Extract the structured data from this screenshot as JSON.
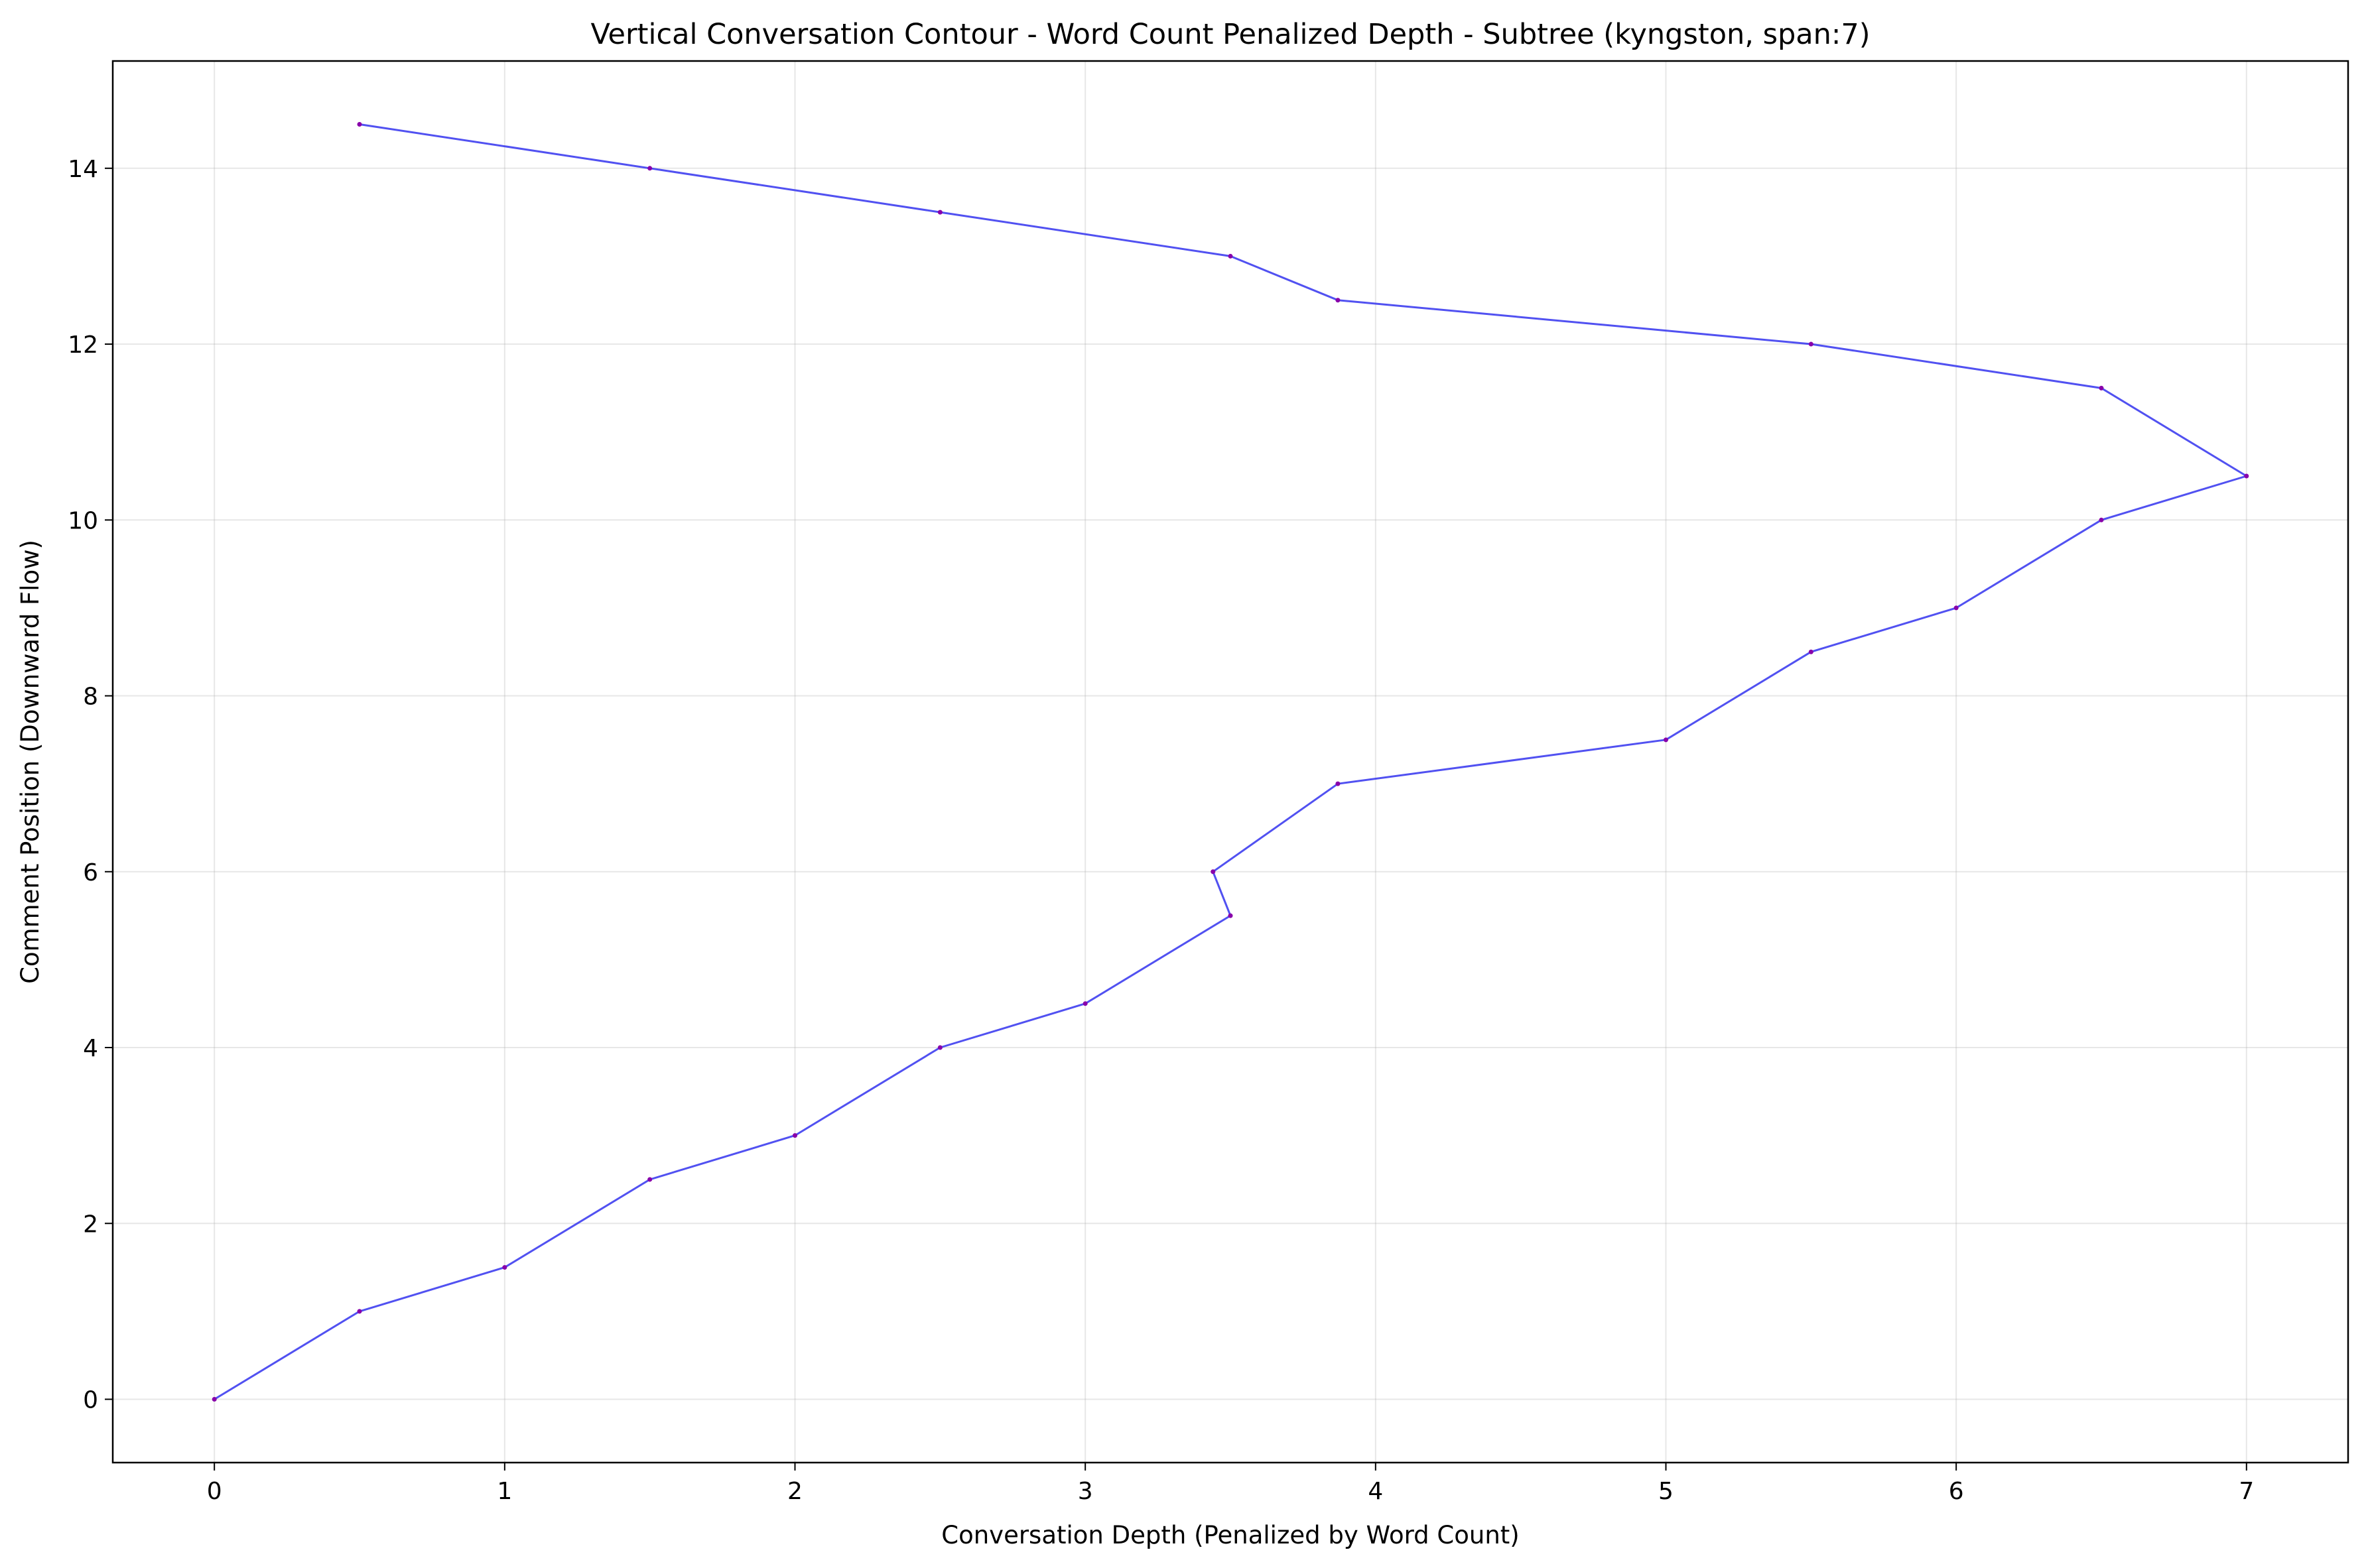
{
  "chart_data": {
    "type": "line",
    "title": "Vertical Conversation Contour - Word Count Penalized Depth - Subtree (kyngston, span:7)",
    "xlabel": "Conversation Depth (Penalized by Word Count)",
    "ylabel": "Comment Position (Downward Flow)",
    "xlim": [
      -0.35,
      7.35
    ],
    "ylim": [
      -0.72,
      15.22
    ],
    "xticks": [
      0,
      1,
      2,
      3,
      4,
      5,
      6,
      7
    ],
    "yticks": [
      0,
      2,
      4,
      6,
      8,
      10,
      12,
      14
    ],
    "grid": true,
    "legend": "none",
    "series": [
      {
        "color": "#3333ee",
        "marker_color": "#8800aa",
        "x": [
          0,
          0.5,
          1,
          1.5,
          2,
          2.5,
          3,
          3.5,
          3.44,
          3.87,
          5,
          5.5,
          6,
          6.5,
          7,
          6.5,
          5.5,
          3.87,
          3.5,
          2.5,
          1.5,
          0.5
        ],
        "y": [
          0,
          1,
          1.5,
          2.5,
          3,
          4,
          4.5,
          5.5,
          6,
          7,
          7.5,
          8.5,
          9,
          10,
          10.5,
          11.5,
          12,
          12.5,
          13,
          13.5,
          14,
          14.5
        ]
      }
    ]
  }
}
